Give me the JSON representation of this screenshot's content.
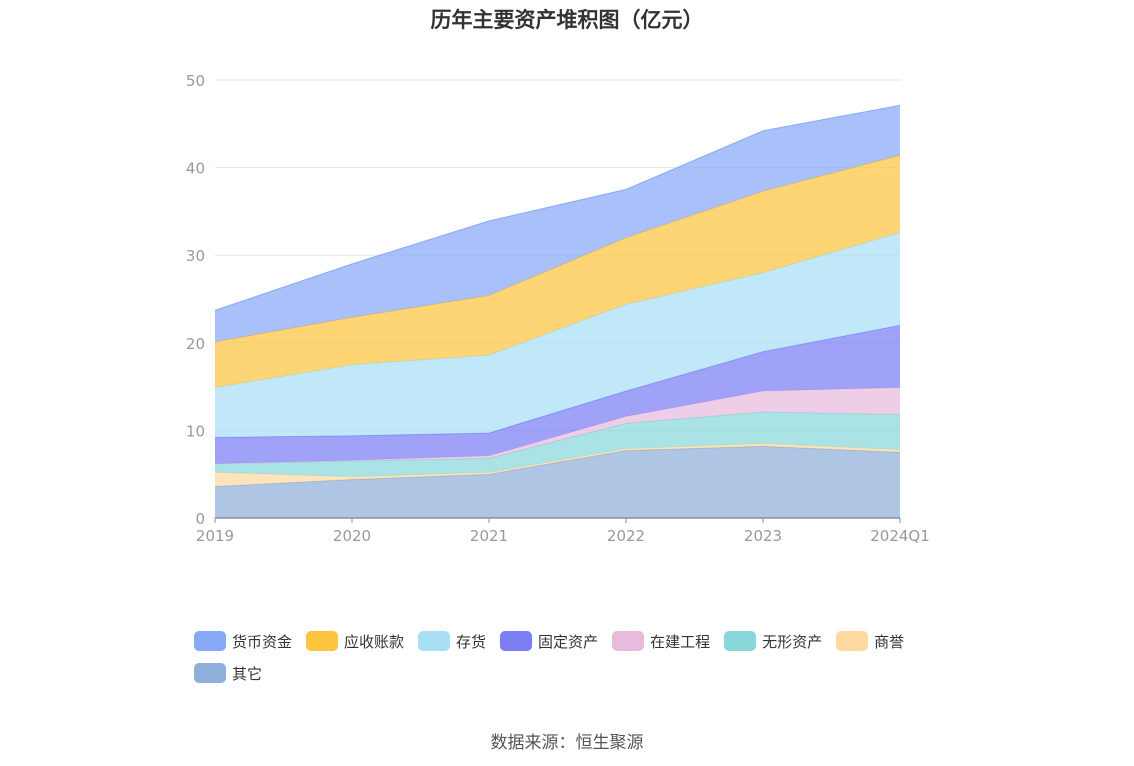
{
  "title": "历年主要资产堆积图（亿元）",
  "source": "数据来源：恒生聚源",
  "chart_data": {
    "type": "area",
    "stacked": true,
    "title": "历年主要资产堆积图（亿元）",
    "categories": [
      "2019",
      "2020",
      "2021",
      "2022",
      "2023",
      "2024Q1"
    ],
    "ylim": [
      0,
      50
    ],
    "yticks": [
      0,
      10,
      20,
      30,
      40,
      50
    ],
    "grid": true,
    "legend_position": "bottom",
    "series": [
      {
        "name": "其它",
        "color": "#8fafda",
        "values": [
          3.6,
          4.4,
          5.0,
          7.7,
          8.2,
          7.5
        ]
      },
      {
        "name": "商誉",
        "color": "#fdd9a0",
        "values": [
          1.6,
          0.3,
          0.2,
          0.2,
          0.3,
          0.3
        ]
      },
      {
        "name": "无形资产",
        "color": "#88d8db",
        "values": [
          1.0,
          1.8,
          1.6,
          2.9,
          3.6,
          4.0
        ]
      },
      {
        "name": "在建工程",
        "color": "#e8bbdc",
        "values": [
          0.0,
          0.1,
          0.3,
          0.8,
          2.4,
          3.1
        ]
      },
      {
        "name": "固定资产",
        "color": "#7b7ef5",
        "values": [
          3.0,
          2.8,
          2.6,
          2.9,
          4.5,
          7.1
        ]
      },
      {
        "name": "存货",
        "color": "#a8dff7",
        "values": [
          5.7,
          8.1,
          8.9,
          9.9,
          9.0,
          10.6
        ]
      },
      {
        "name": "应收账款",
        "color": "#fec540",
        "values": [
          5.2,
          5.4,
          6.8,
          7.6,
          9.3,
          8.8
        ]
      },
      {
        "name": "货币资金",
        "color": "#88a8f8",
        "values": [
          3.6,
          6.1,
          8.5,
          5.5,
          6.9,
          5.7
        ]
      }
    ],
    "legend_order": [
      "货币资金",
      "应收账款",
      "存货",
      "固定资产",
      "在建工程",
      "无形资产",
      "商誉",
      "其它"
    ]
  }
}
